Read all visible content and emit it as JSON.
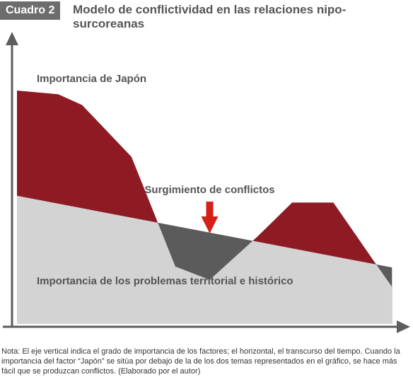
{
  "header": {
    "badge": "Cuadro 2",
    "title": "Modelo de conflictividad en las relaciones nipo-surcoreanas"
  },
  "colors": {
    "japan": "#8e1a24",
    "problems": "#d3d3d3",
    "conflict": "#5b5b5b",
    "arrow": "#d42018",
    "axis": "#5d5d5d"
  },
  "chart_data": {
    "type": "area",
    "title": "Modelo de conflictividad en las relaciones nipo-surcoreanas",
    "xlabel": "",
    "ylabel": "",
    "xlim": [
      0,
      100
    ],
    "ylim": [
      0,
      100
    ],
    "grid": false,
    "legend": "none",
    "series": [
      {
        "name": "Importancia de Japón",
        "x": [
          0,
          10.7,
          16.9,
          29.7,
          41.1,
          50,
          62.5,
          71.4,
          82.1,
          93.5,
          97.3
        ],
        "y": [
          100,
          98.4,
          93.8,
          71.6,
          24.6,
          18.9,
          37.6,
          52,
          52,
          24.8,
          15.9
        ]
      },
      {
        "name": "Importancia de los problemas territorial e histórico",
        "x": [
          0,
          97.3
        ],
        "y": [
          54.9,
          24.2
        ]
      }
    ],
    "annotations": [
      {
        "text": "Surgimiento de conflictos",
        "x": 50,
        "y": 26
      }
    ]
  },
  "note": "Nota: El eje vertical indica el grado de importancia de los factores; el horizontal, el transcurso del tiempo. Cuando la importancia del factor “Japón” se sitúa por debajo de la de los dos temas representados en el gráfico, se hace más fácil que se produzcan conflictos. (Elaborado por el autor)"
}
